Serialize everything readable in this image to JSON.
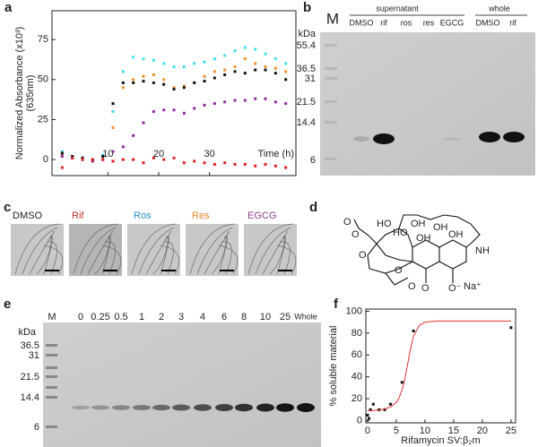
{
  "panel_labels": [
    "a",
    "b",
    "c",
    "d",
    "e",
    "f"
  ],
  "chart_data": [
    {
      "type": "scatter",
      "y_label": [
        "Normalized Absorbance (x10³)",
        "(635nm)"
      ],
      "x_label": "Time (h)",
      "x": [
        1,
        3,
        5,
        7,
        9,
        11,
        13,
        15,
        17,
        19,
        21,
        23,
        25,
        27,
        29,
        31,
        33,
        35,
        37,
        39,
        41,
        43,
        45
      ],
      "series": [
        {
          "color": "#40e0f0",
          "values": [
            5,
            2,
            1,
            0,
            3,
            30,
            55,
            64,
            63,
            62,
            60,
            58,
            58,
            60,
            61,
            63,
            65,
            68,
            70,
            69,
            66,
            63,
            60
          ]
        },
        {
          "color": "#f0922b",
          "values": [
            3,
            1,
            0,
            -1,
            2,
            20,
            45,
            50,
            52,
            53,
            50,
            45,
            46,
            48,
            52,
            55,
            56,
            58,
            63,
            60,
            58,
            57,
            55
          ]
        },
        {
          "color": "#111111",
          "values": [
            4,
            2,
            1,
            0,
            2,
            35,
            48,
            48,
            49,
            48,
            47,
            44,
            45,
            48,
            49,
            51,
            53,
            55,
            54,
            56,
            56,
            54,
            50
          ]
        },
        {
          "color": "#8e2a9e",
          "values": [
            2,
            1,
            0,
            -1,
            0,
            5,
            8,
            15,
            23,
            30,
            31,
            31,
            29,
            32,
            34,
            35,
            36,
            37,
            37,
            38,
            38,
            36,
            35
          ]
        },
        {
          "color": "#e02020",
          "values": [
            -5,
            1,
            0,
            0,
            0,
            -1,
            0,
            0,
            -2,
            1,
            0,
            1,
            -2,
            -1,
            -2,
            -3,
            -2,
            -3,
            -3,
            -4,
            -3,
            -4,
            -5
          ]
        }
      ],
      "xlim": [
        -1,
        47
      ],
      "xticks": [
        10,
        20,
        30
      ],
      "ylim": [
        -10,
        93
      ],
      "yticks": [
        0,
        25,
        50,
        75
      ]
    },
    {
      "type": "scatter",
      "y_label": [
        "% soluble material"
      ],
      "x_label": "Rifamycin SV:β₂m",
      "series": [
        {
          "color": "#111111",
          "x": [
            0,
            0.25,
            0.5,
            1,
            2,
            3,
            4,
            6,
            8,
            25
          ],
          "values": [
            5,
            2,
            10,
            15,
            10,
            10,
            15,
            35,
            82,
            85
          ]
        },
        {
          "color": "#e03030",
          "style": "line",
          "x": [
            0,
            1,
            2,
            3,
            4,
            5,
            5.5,
            6,
            6.5,
            7,
            7.5,
            8,
            9,
            10,
            12,
            15,
            20,
            25
          ],
          "values": [
            9,
            9.3,
            9.8,
            10.7,
            12.5,
            16.5,
            21,
            28,
            38,
            52,
            66,
            77,
            87,
            90,
            91,
            91,
            91,
            91
          ]
        }
      ],
      "xlim": [
        -0.3,
        25.8
      ],
      "xticks": [
        0,
        5,
        10,
        15,
        20,
        25
      ],
      "ylim": [
        -2,
        102
      ],
      "yticks": [
        0,
        20,
        40,
        60,
        80,
        100
      ]
    }
  ],
  "gel_b": {
    "marker": "M",
    "unit": "kDa",
    "group_labels": [
      "supernatant",
      "whole"
    ],
    "lanes": [
      "DMSO",
      "rif",
      "ros",
      "res",
      "EGCG",
      "DMSO",
      "rif"
    ],
    "markers": [
      "55.4",
      "36.5",
      "31",
      "21.5",
      "14.4",
      "6"
    ]
  },
  "images_c": {
    "labels": [
      "DMSO",
      "Rif",
      "Ros",
      "Res",
      "EGCG"
    ]
  },
  "structure_d": {
    "atoms": [
      "HO",
      "HO",
      "OH",
      "OH",
      "O",
      "O",
      "O",
      "NH",
      "OH",
      "OH",
      "O",
      "O",
      "O",
      "O⁻",
      "Na⁺"
    ]
  },
  "gel_e": {
    "unit": "kDa",
    "lanes": [
      "M",
      "0",
      "0.25",
      "0.5",
      "1",
      "2",
      "3",
      "4",
      "6",
      "8",
      "10",
      "25",
      "Whole"
    ],
    "markers": [
      "36.5",
      "31",
      "21.5",
      "14.4",
      "6"
    ]
  }
}
